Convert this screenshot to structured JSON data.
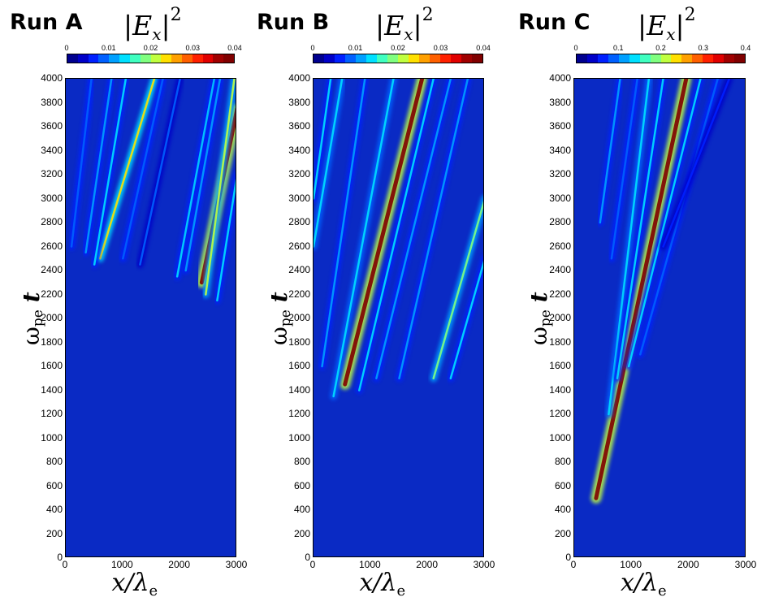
{
  "panels": [
    {
      "title": "Run A",
      "colorbar": {
        "label_base": "E",
        "label_sub": "x",
        "label_sup": "2",
        "ticks": [
          "0",
          "0.01",
          "0.02",
          "0.03",
          "0.04"
        ]
      },
      "yticks": [
        "0",
        "200",
        "400",
        "600",
        "800",
        "1000",
        "1200",
        "1400",
        "1600",
        "1800",
        "2000",
        "2200",
        "2400",
        "2600",
        "2800",
        "3000",
        "3200",
        "3400",
        "3600",
        "3800",
        "4000"
      ],
      "xticks": [
        "0",
        "1000",
        "2000",
        "3000"
      ],
      "xlabel_base": "x/λ",
      "xlabel_sub": "e",
      "ylabel_base": "ω",
      "ylabel_sub": "pe",
      "ylabel_t": "t"
    },
    {
      "title": "Run B",
      "colorbar": {
        "label_base": "E",
        "label_sub": "x",
        "label_sup": "2",
        "ticks": [
          "0",
          "0.01",
          "0.02",
          "0.03",
          "0.04"
        ]
      },
      "yticks": [
        "0",
        "200",
        "400",
        "600",
        "800",
        "1000",
        "1200",
        "1400",
        "1600",
        "1800",
        "2000",
        "2200",
        "2400",
        "2600",
        "2800",
        "3000",
        "3200",
        "3400",
        "3600",
        "3800",
        "4000"
      ],
      "xticks": [
        "0",
        "1000",
        "2000",
        "3000"
      ],
      "xlabel_base": "x/λ",
      "xlabel_sub": "e",
      "ylabel_base": "ω",
      "ylabel_sub": "pe",
      "ylabel_t": "t"
    },
    {
      "title": "Run C",
      "colorbar": {
        "label_base": "E",
        "label_sub": "x",
        "label_sup": "2",
        "ticks": [
          "0",
          "0.1",
          "0.2",
          "0.3",
          "0.4"
        ]
      },
      "yticks": [
        "0",
        "200",
        "400",
        "600",
        "800",
        "1000",
        "1200",
        "1400",
        "1600",
        "1800",
        "2000",
        "2200",
        "2400",
        "2600",
        "2800",
        "3000",
        "3200",
        "3400",
        "3600",
        "3800",
        "4000"
      ],
      "xticks": [
        "0",
        "1000",
        "2000",
        "3000"
      ],
      "xlabel_base": "x/λ",
      "xlabel_sub": "e",
      "ylabel_base": "ω",
      "ylabel_sub": "pe",
      "ylabel_t": "t"
    }
  ],
  "colorscale": [
    "#00008f",
    "#0000c8",
    "#0020ff",
    "#0060ff",
    "#00a0ff",
    "#00e0ff",
    "#40ffc0",
    "#80ff80",
    "#c0ff40",
    "#ffe000",
    "#ffa000",
    "#ff6000",
    "#ff2000",
    "#e00000",
    "#a00000",
    "#800000"
  ],
  "background_color": "#0a2ac4",
  "chart_data": [
    {
      "type": "heatmap",
      "title": "Run A",
      "colorbar_label": "|Ex|^2",
      "colorbar_range": [
        0,
        0.04
      ],
      "xlabel": "x/λe",
      "ylabel": "ωpe t",
      "xlim": [
        0,
        3000
      ],
      "ylim": [
        0,
        4000
      ],
      "streaks": [
        {
          "x0": 2380,
          "y0": 2300,
          "x1": 3000,
          "y1": 3750,
          "peak": 0.04
        },
        {
          "x0": 2450,
          "y0": 2200,
          "x1": 2950,
          "y1": 4000,
          "peak": 0.02
        },
        {
          "x0": 2650,
          "y0": 2150,
          "x1": 3000,
          "y1": 3200,
          "peak": 0.012
        },
        {
          "x0": 1950,
          "y0": 2350,
          "x1": 2600,
          "y1": 4000,
          "peak": 0.012
        },
        {
          "x0": 2100,
          "y0": 2400,
          "x1": 2700,
          "y1": 4000,
          "peak": 0.01
        },
        {
          "x0": 600,
          "y0": 2500,
          "x1": 1550,
          "y1": 4000,
          "peak": 0.024
        },
        {
          "x0": 500,
          "y0": 2450,
          "x1": 1050,
          "y1": 4000,
          "peak": 0.012
        },
        {
          "x0": 350,
          "y0": 2550,
          "x1": 800,
          "y1": 4000,
          "peak": 0.01
        },
        {
          "x0": 100,
          "y0": 2600,
          "x1": 450,
          "y1": 4000,
          "peak": 0.008
        },
        {
          "x0": 1000,
          "y0": 2500,
          "x1": 1700,
          "y1": 4000,
          "peak": 0.008
        },
        {
          "x0": 1300,
          "y0": 2450,
          "x1": 2000,
          "y1": 4000,
          "peak": 0.007
        }
      ]
    },
    {
      "type": "heatmap",
      "title": "Run B",
      "colorbar_label": "|Ex|^2",
      "colorbar_range": [
        0,
        0.04
      ],
      "xlabel": "x/λe",
      "ylabel": "ωpe t",
      "xlim": [
        0,
        3000
      ],
      "ylim": [
        0,
        4000
      ],
      "streaks": [
        {
          "x0": 550,
          "y0": 1450,
          "x1": 1900,
          "y1": 4000,
          "peak": 0.04
        },
        {
          "x0": 350,
          "y0": 1350,
          "x1": 1400,
          "y1": 4000,
          "peak": 0.014
        },
        {
          "x0": 800,
          "y0": 1400,
          "x1": 2100,
          "y1": 4000,
          "peak": 0.012
        },
        {
          "x0": 1100,
          "y0": 1500,
          "x1": 2400,
          "y1": 4000,
          "peak": 0.01
        },
        {
          "x0": 1500,
          "y0": 1500,
          "x1": 2700,
          "y1": 4000,
          "peak": 0.01
        },
        {
          "x0": 2100,
          "y0": 1500,
          "x1": 3000,
          "y1": 3000,
          "peak": 0.018
        },
        {
          "x0": 2400,
          "y0": 1500,
          "x1": 3000,
          "y1": 2500,
          "peak": 0.012
        },
        {
          "x0": 0,
          "y0": 2600,
          "x1": 500,
          "y1": 4000,
          "peak": 0.014
        },
        {
          "x0": 0,
          "y0": 3000,
          "x1": 300,
          "y1": 4000,
          "peak": 0.012
        },
        {
          "x0": 150,
          "y0": 1600,
          "x1": 900,
          "y1": 4000,
          "peak": 0.01
        }
      ]
    },
    {
      "type": "heatmap",
      "title": "Run C",
      "colorbar_label": "|Ex|^2",
      "colorbar_range": [
        0,
        0.4
      ],
      "xlabel": "x/λe",
      "ylabel": "ωpe t",
      "xlim": [
        0,
        3000
      ],
      "ylim": [
        0,
        4000
      ],
      "streaks": [
        {
          "x0": 380,
          "y0": 500,
          "x1": 1950,
          "y1": 4000,
          "peak": 0.4
        },
        {
          "x0": 600,
          "y0": 1200,
          "x1": 1300,
          "y1": 4000,
          "peak": 0.14
        },
        {
          "x0": 750,
          "y0": 1500,
          "x1": 1550,
          "y1": 4000,
          "peak": 0.12
        },
        {
          "x0": 950,
          "y0": 1600,
          "x1": 2200,
          "y1": 4000,
          "peak": 0.12
        },
        {
          "x0": 1150,
          "y0": 1700,
          "x1": 2500,
          "y1": 4000,
          "peak": 0.08
        },
        {
          "x0": 450,
          "y0": 2800,
          "x1": 800,
          "y1": 4000,
          "peak": 0.1
        },
        {
          "x0": 650,
          "y0": 2500,
          "x1": 1100,
          "y1": 4000,
          "peak": 0.09
        },
        {
          "x0": 1550,
          "y0": 2600,
          "x1": 2700,
          "y1": 4000,
          "peak": 0.06
        }
      ]
    }
  ]
}
